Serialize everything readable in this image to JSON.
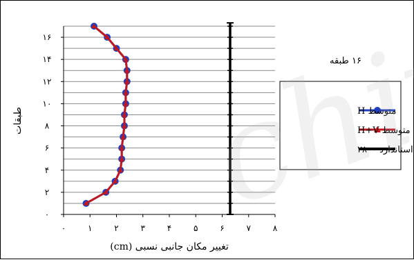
{
  "chart_data": {
    "type": "line",
    "title": "",
    "xlabel": "تغییر مکان جانبی نسبی (cm)",
    "ylabel": "طبقات",
    "xlim": [
      0,
      8
    ],
    "ylim": [
      0,
      17
    ],
    "x_tick_labels": [
      "۰",
      "۱",
      "۲",
      "۳",
      "۴",
      "۵",
      "۶",
      "۷",
      "۸"
    ],
    "y_tick_labels": [
      "۰",
      "۲",
      "۴",
      "۶",
      "۸",
      "۱۰",
      "۱۲",
      "۱۴",
      "۱۶"
    ],
    "x_ticks": [
      0,
      1,
      2,
      3,
      4,
      5,
      6,
      7,
      8
    ],
    "y_ticks": [
      0,
      2,
      4,
      6,
      8,
      10,
      12,
      14,
      16
    ],
    "grid": "horizontal",
    "legend_title": "۱۶ طبقه",
    "legend_position": "right",
    "series": [
      {
        "name": "متوسط H",
        "color": "#1f3fbf",
        "marker": "circle",
        "x": [
          0.85,
          1.6,
          1.95,
          2.15,
          2.2,
          2.2,
          2.25,
          2.3,
          2.3,
          2.35,
          2.35,
          2.4,
          2.4,
          2.35,
          2.0,
          1.65,
          1.15
        ],
        "y": [
          1,
          2,
          3,
          4,
          5,
          6,
          7,
          8,
          9,
          10,
          11,
          12,
          13,
          14,
          15,
          16,
          17
        ]
      },
      {
        "name": "متوسط H+V",
        "color": "#c0181f",
        "marker": "triangle",
        "x": [
          0.85,
          1.6,
          1.95,
          2.15,
          2.2,
          2.2,
          2.25,
          2.3,
          2.3,
          2.35,
          2.35,
          2.4,
          2.4,
          2.35,
          2.0,
          1.65,
          1.15
        ],
        "y": [
          1,
          2,
          3,
          4,
          5,
          6,
          7,
          8,
          9,
          10,
          11,
          12,
          13,
          14,
          15,
          16,
          17
        ]
      },
      {
        "name": "استاندارد ۲۸۰۰",
        "color": "#000000",
        "marker": "none",
        "x": [
          6.3,
          6.3
        ],
        "y": [
          0,
          17.3
        ]
      }
    ]
  }
}
